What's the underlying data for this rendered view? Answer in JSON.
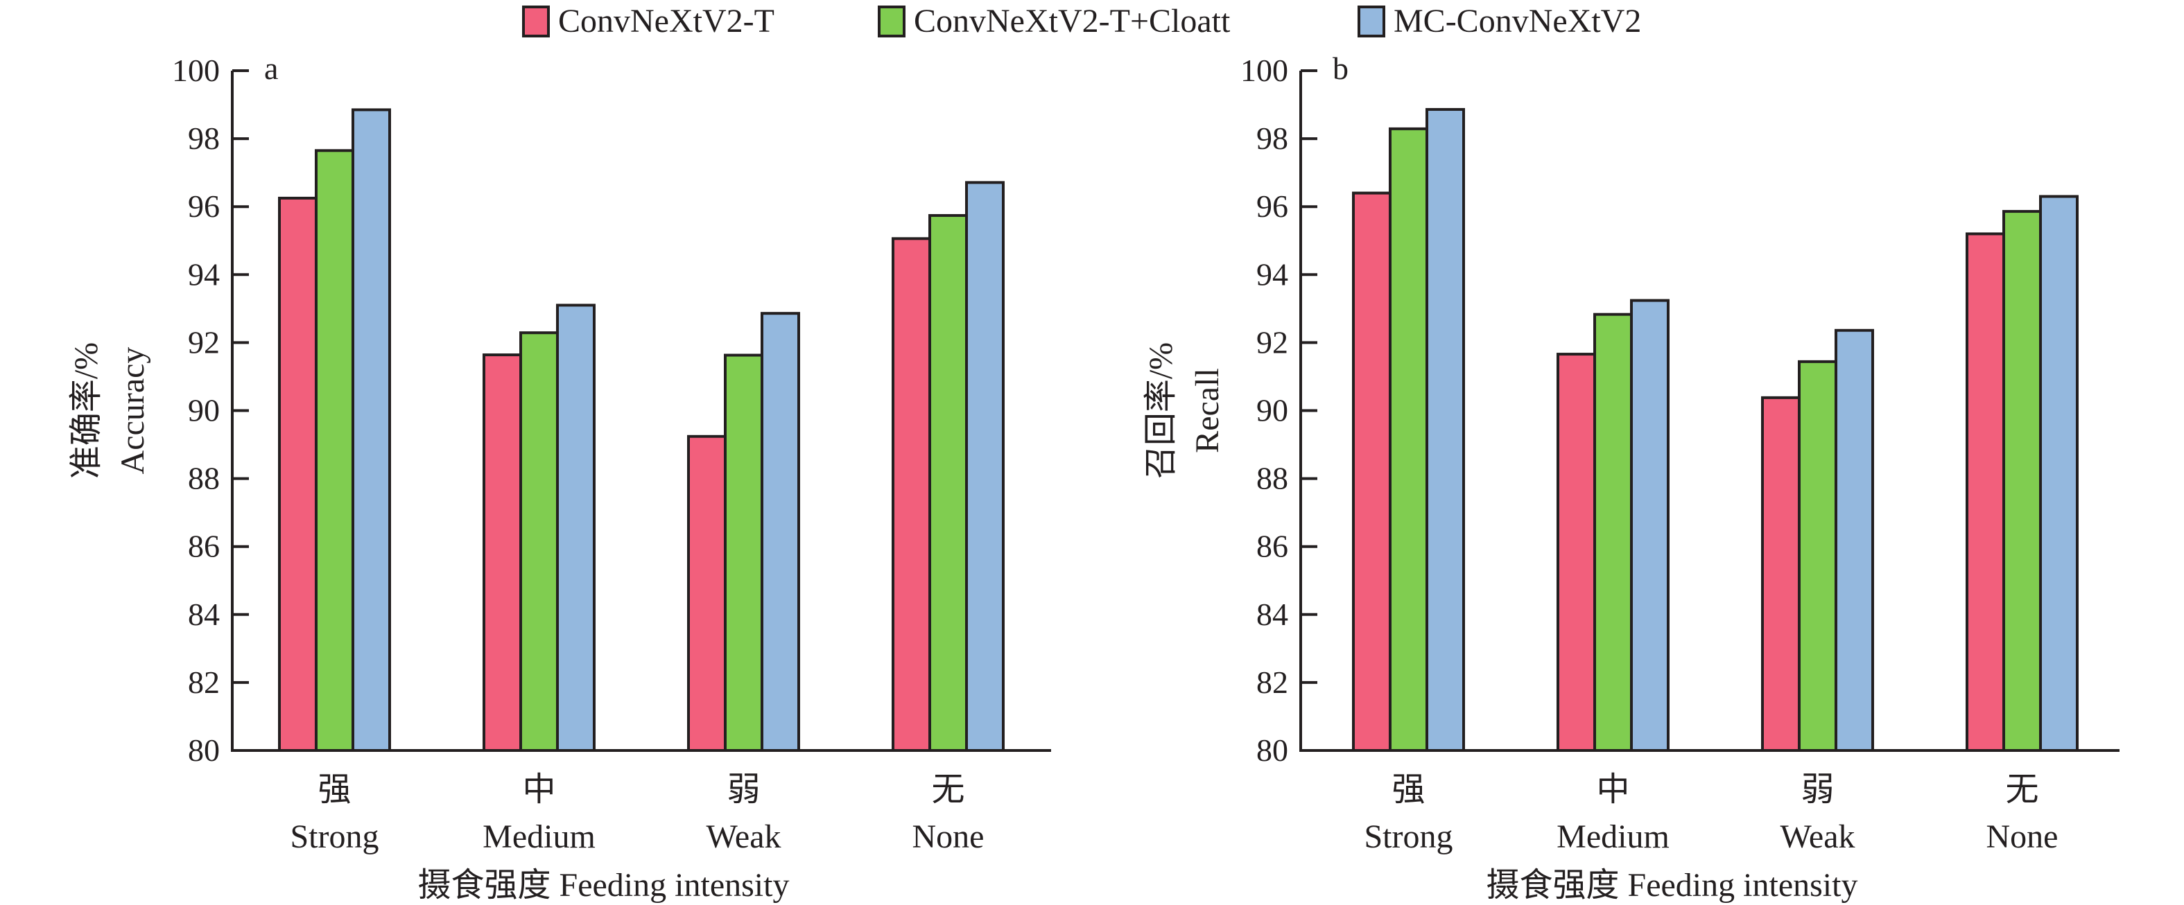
{
  "legend": [
    {
      "label": "ConvNeXtV2-T",
      "color": "#f25f7c"
    },
    {
      "label": "ConvNeXtV2-T+Cloatt",
      "color": "#80cd50"
    },
    {
      "label": "MC-ConvNeXtV2",
      "color": "#94b8de"
    }
  ],
  "chart_data": [
    {
      "type": "bar",
      "panel": "a",
      "title": "",
      "xlabel": "摄食强度 Feeding intensity",
      "ylabel_cn": "准确率/%",
      "ylabel_en": "Accuracy",
      "ylim": [
        80,
        100
      ],
      "yticks": [
        80,
        82,
        84,
        86,
        88,
        90,
        92,
        94,
        96,
        98,
        100
      ],
      "categories": [
        {
          "cn": "强",
          "en": "Strong"
        },
        {
          "cn": "中",
          "en": "Medium"
        },
        {
          "cn": "弱",
          "en": "Weak"
        },
        {
          "cn": "无",
          "en": "None"
        }
      ],
      "series": [
        {
          "name": "ConvNeXtV2-T",
          "values": [
            96.25,
            91.64,
            89.24,
            95.06
          ]
        },
        {
          "name": "ConvNeXtV2-T+Cloatt",
          "values": [
            97.65,
            92.29,
            91.63,
            95.74
          ]
        },
        {
          "name": "MC-ConvNeXtV2",
          "values": [
            98.85,
            93.1,
            92.86,
            96.71
          ]
        }
      ],
      "grid": false,
      "legend_position": "top-center"
    },
    {
      "type": "bar",
      "panel": "b",
      "title": "",
      "xlabel": "摄食强度 Feeding intensity",
      "ylabel_cn": "召回率/%",
      "ylabel_en": "Recall",
      "ylim": [
        80,
        100
      ],
      "yticks": [
        80,
        82,
        84,
        86,
        88,
        90,
        92,
        94,
        96,
        98,
        100
      ],
      "categories": [
        {
          "cn": "强",
          "en": "Strong"
        },
        {
          "cn": "中",
          "en": "Medium"
        },
        {
          "cn": "弱",
          "en": "Weak"
        },
        {
          "cn": "无",
          "en": "None"
        }
      ],
      "series": [
        {
          "name": "ConvNeXtV2-T",
          "values": [
            96.4,
            91.66,
            90.38,
            95.2
          ]
        },
        {
          "name": "ConvNeXtV2-T+Cloatt",
          "values": [
            98.29,
            92.83,
            91.44,
            95.86
          ]
        },
        {
          "name": "MC-ConvNeXtV2",
          "values": [
            98.86,
            93.24,
            92.36,
            96.3
          ]
        }
      ],
      "grid": false,
      "legend_position": "top-center"
    }
  ]
}
